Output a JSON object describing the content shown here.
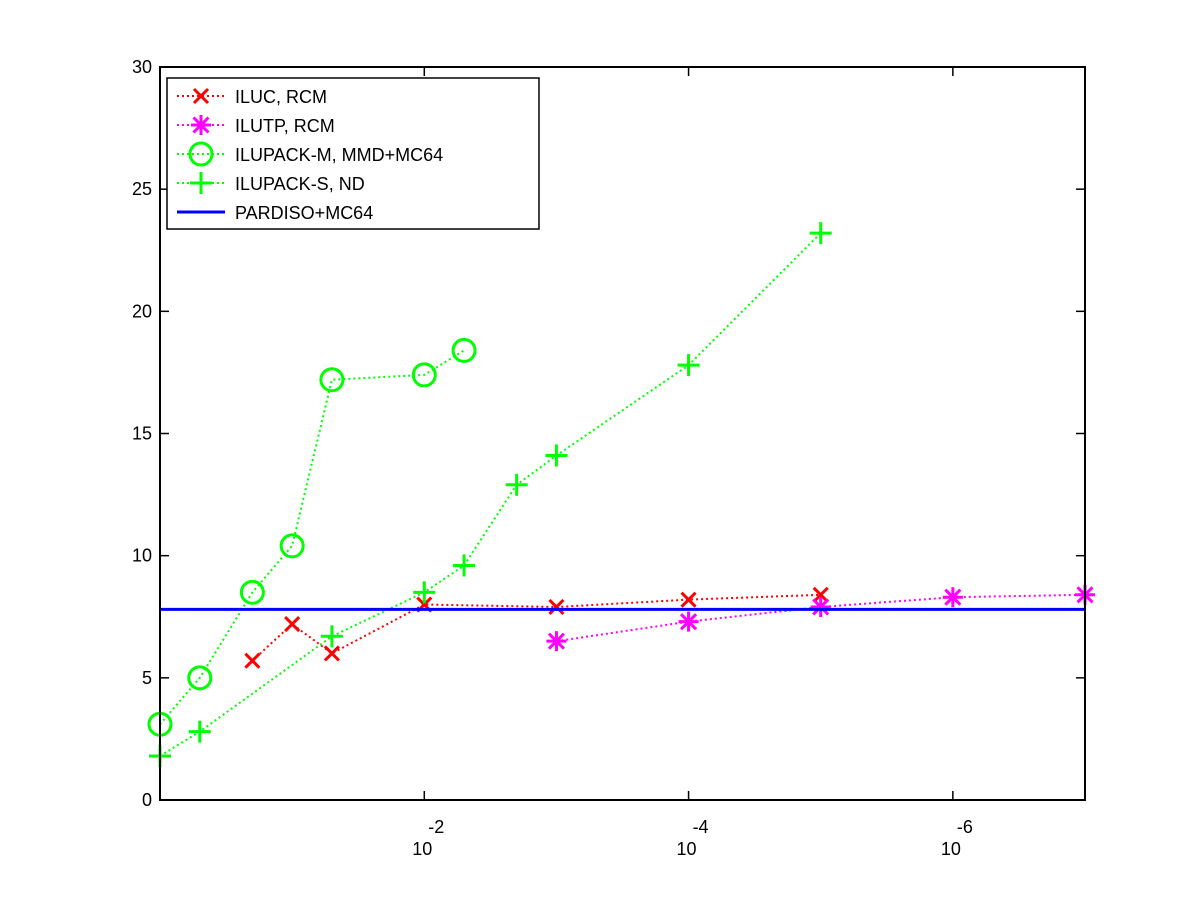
{
  "chart_data": {
    "type": "line",
    "title": "",
    "xlabel": "",
    "ylabel": "",
    "x_scale": "log",
    "x_reversed": true,
    "xlim": [
      1.0,
      1e-07
    ],
    "ylim": [
      0,
      30
    ],
    "grid": false,
    "y_ticks": [
      0,
      5,
      10,
      15,
      20,
      25,
      30
    ],
    "x_tick_values": [
      0.01,
      0.0001,
      1e-06
    ],
    "x_tick_labels": [
      {
        "base": "10",
        "exp": "-2"
      },
      {
        "base": "10",
        "exp": "-4"
      },
      {
        "base": "10",
        "exp": "-6"
      }
    ],
    "legend_position": "top-left",
    "series": [
      {
        "name": "ILUC, RCM",
        "color": "#ff0000",
        "marker": "x",
        "line": "dotted",
        "x": [
          0.2,
          0.1,
          0.05,
          0.01,
          0.001,
          0.0001,
          1e-05
        ],
        "y": [
          5.7,
          7.2,
          6.0,
          8.0,
          7.9,
          8.2,
          8.4
        ]
      },
      {
        "name": "ILUTP, RCM",
        "color": "#ff00ff",
        "marker": "asterisk",
        "line": "dotted",
        "x": [
          0.001,
          0.0001,
          1e-05,
          1e-06,
          1e-07
        ],
        "y": [
          6.5,
          7.3,
          7.9,
          8.3,
          8.4
        ]
      },
      {
        "name": "ILUPACK-M, MMD+MC64",
        "color": "#00ff00",
        "marker": "circle",
        "line": "dotted",
        "x": [
          1.0,
          0.5,
          0.2,
          0.1,
          0.05,
          0.01,
          0.005
        ],
        "y": [
          3.1,
          5.0,
          8.5,
          10.4,
          17.2,
          17.4,
          18.4
        ]
      },
      {
        "name": "ILUPACK-S, ND",
        "color": "#00ff00",
        "marker": "plus",
        "line": "dotted",
        "x": [
          1.0,
          0.5,
          0.05,
          0.01,
          0.005,
          0.002,
          0.001,
          0.0001,
          1e-05
        ],
        "y": [
          1.8,
          2.8,
          6.7,
          8.5,
          9.6,
          12.9,
          14.1,
          17.8,
          23.2
        ]
      },
      {
        "name": "PARDISO+MC64",
        "color": "#0000ff",
        "marker": "none",
        "line": "solid",
        "x": [
          1.0,
          1e-07
        ],
        "y": [
          7.8,
          7.8
        ]
      }
    ]
  }
}
